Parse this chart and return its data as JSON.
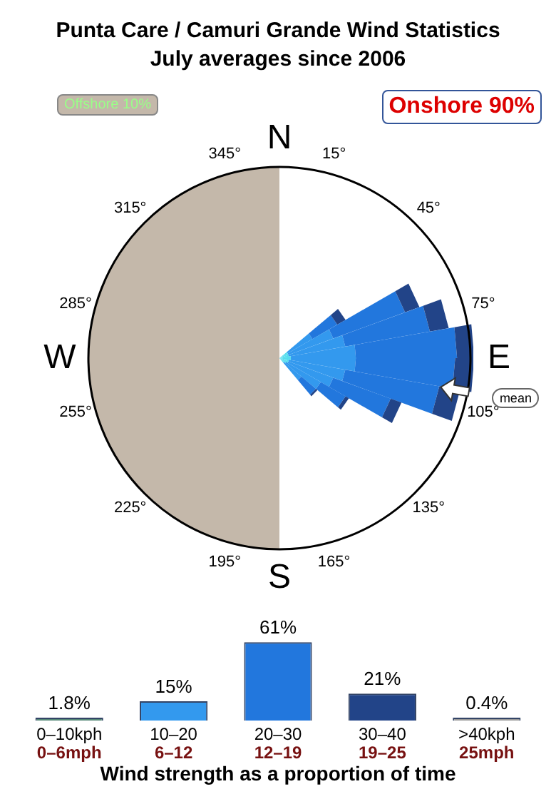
{
  "chart_data": [
    {
      "type": "other",
      "title": "Punta Care / Camuri Grande Wind Statistics",
      "subtitle": "July averages since 2006",
      "annotations": [
        "Offshore 10%",
        "Onshore 90%",
        "N",
        "15°",
        "45°",
        "75°",
        "E",
        "105°",
        "135°",
        "165°",
        "S",
        "195°",
        "225°",
        "255°",
        "W",
        "285°",
        "315°",
        "345°",
        "mean"
      ]
    },
    {
      "type": "bar",
      "xlabel": "Wind strength as a proportion of time",
      "legend": false,
      "grid": false,
      "categories": [
        "0–10kph\n0–6mph",
        "10–20\n6–12",
        "20–30\n12–19",
        "30–40\n19–25",
        ">40kph\n25mph"
      ],
      "values": [
        1.8,
        15,
        61,
        21,
        0.4
      ],
      "colors": [
        "#558877",
        "#3399ee",
        "#2277dd",
        "#224488",
        "#999999"
      ],
      "value_labels": [
        "1.8%",
        "15%",
        "61%",
        "21%",
        "0.4%"
      ]
    }
  ]
}
